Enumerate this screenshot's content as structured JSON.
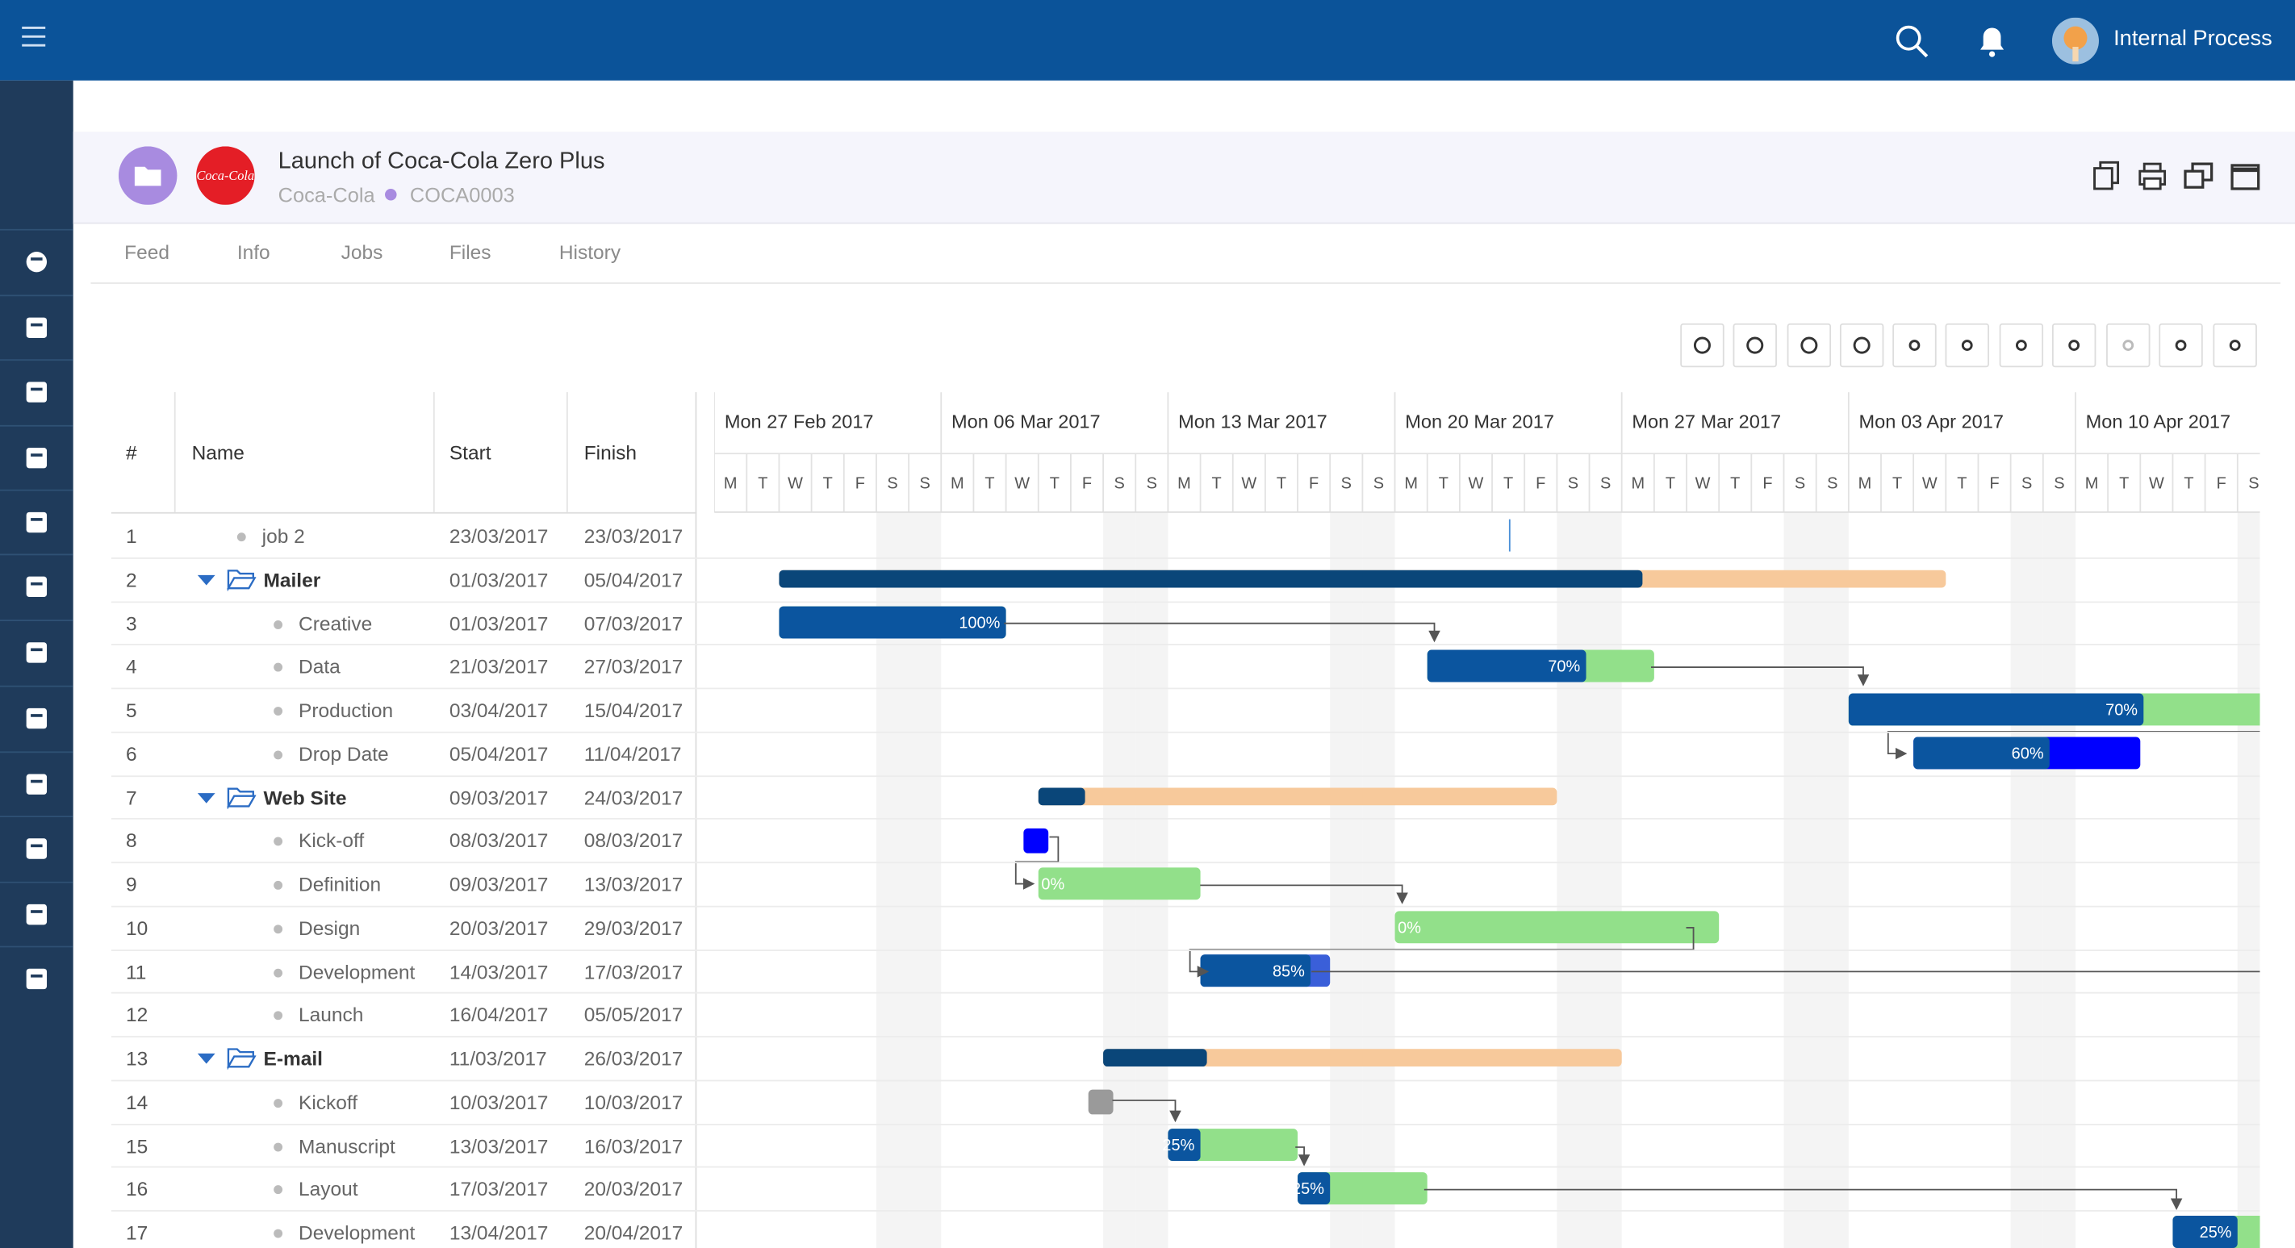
{
  "topbar": {
    "user": "Internal Process"
  },
  "project": {
    "title": "Launch of Coca-Cola Zero Plus",
    "client": "Coca-Cola",
    "code": "COCA0003",
    "logo_text": "Coca-Cola"
  },
  "tabs": [
    "Feed",
    "Info",
    "Jobs",
    "Files",
    "History"
  ],
  "table": {
    "headers": [
      "#",
      "Name",
      "Start",
      "Finish"
    ],
    "rows": [
      {
        "num": "1",
        "name": "job 2",
        "start": "23/03/2017",
        "finish": "23/03/2017",
        "kind": "marker"
      },
      {
        "num": "2",
        "name": "Mailer",
        "start": "01/03/2017",
        "finish": "05/04/2017",
        "kind": "group",
        "progress": 74
      },
      {
        "num": "3",
        "name": "Creative",
        "start": "01/03/2017",
        "finish": "07/03/2017",
        "kind": "task",
        "progress": 100,
        "progress_label": "100%"
      },
      {
        "num": "4",
        "name": "Data",
        "start": "21/03/2017",
        "finish": "27/03/2017",
        "kind": "task",
        "progress": 70,
        "progress_label": "70%"
      },
      {
        "num": "5",
        "name": "Production",
        "start": "03/04/2017",
        "finish": "15/04/2017",
        "kind": "task",
        "progress": 70,
        "progress_label": "70%"
      },
      {
        "num": "6",
        "name": "Drop Date",
        "start": "05/04/2017",
        "finish": "11/04/2017",
        "kind": "task",
        "progress": 60,
        "progress_label": "60%",
        "todo_color": "#0000ff"
      },
      {
        "num": "7",
        "name": "Web Site",
        "start": "09/03/2017",
        "finish": "24/03/2017",
        "kind": "group",
        "progress": 9
      },
      {
        "num": "8",
        "name": "Kick-off",
        "start": "08/03/2017",
        "finish": "08/03/2017",
        "kind": "milestone",
        "color": "#0000ff"
      },
      {
        "num": "9",
        "name": "Definition",
        "start": "09/03/2017",
        "finish": "13/03/2017",
        "kind": "task",
        "progress": 0,
        "progress_label": "0%"
      },
      {
        "num": "10",
        "name": "Design",
        "start": "20/03/2017",
        "finish": "29/03/2017",
        "kind": "task",
        "progress": 0,
        "progress_label": "0%"
      },
      {
        "num": "11",
        "name": "Development",
        "start": "14/03/2017",
        "finish": "17/03/2017",
        "kind": "task",
        "progress": 85,
        "progress_label": "85%",
        "todo_color": "#3a5fd9"
      },
      {
        "num": "12",
        "name": "Launch",
        "start": "16/04/2017",
        "finish": "05/05/2017",
        "kind": "task"
      },
      {
        "num": "13",
        "name": "E-mail",
        "start": "11/03/2017",
        "finish": "26/03/2017",
        "kind": "group",
        "progress": 20
      },
      {
        "num": "14",
        "name": "Kickoff",
        "start": "10/03/2017",
        "finish": "10/03/2017",
        "kind": "milestone",
        "color": "#9a9a9a"
      },
      {
        "num": "15",
        "name": "Manuscript",
        "start": "13/03/2017",
        "finish": "16/03/2017",
        "kind": "task",
        "progress": 25,
        "progress_label": "25%"
      },
      {
        "num": "16",
        "name": "Layout",
        "start": "17/03/2017",
        "finish": "20/03/2017",
        "kind": "task",
        "progress": 25,
        "progress_label": "25%"
      },
      {
        "num": "17",
        "name": "Development",
        "start": "13/04/2017",
        "finish": "20/04/2017",
        "kind": "task",
        "progress": 25,
        "progress_label": "25%"
      }
    ]
  },
  "gantt": {
    "weeks": [
      "Mon 27 Feb 2017",
      "Mon 06 Mar 2017",
      "Mon 13 Mar 2017",
      "Mon 20 Mar 2017",
      "Mon 27 Mar 2017",
      "Mon 03 Apr 2017",
      "Mon 10 Apr 2017"
    ],
    "day_letters": [
      "M",
      "T",
      "W",
      "T",
      "F",
      "S",
      "S"
    ],
    "task_done_color": "#0b559f",
    "task_todo_color": "#92e08a",
    "group_done_color": "#0a4679",
    "group_todo_color": "#f7c99b"
  }
}
